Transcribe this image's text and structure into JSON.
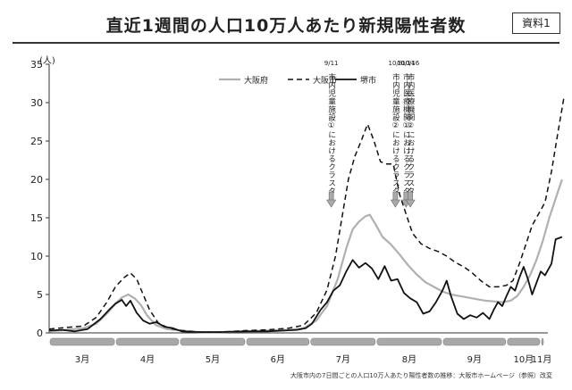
{
  "header": {
    "title": "直近1週間の人口10万人あたり新規陽性者数",
    "doc_label": "資料1"
  },
  "footnote": "大阪市内の7日間ごとの人口10万人あたり陽性者数の推移：大阪市ホームページ（参照）改変",
  "colors": {
    "osaka_pref": "#b0b0b0",
    "osaka_city": "#111111",
    "sakai_city": "#111111",
    "arrow": "#aaaaaa",
    "month_bar": "#a8a8a8"
  },
  "annotations": [
    {
      "date_label": "9/11",
      "text": "市内児童施設①におけるクラスター",
      "x": 132
    },
    {
      "date_label": "10/8",
      "text": "市内児童施設②におけるクラスター",
      "x": 162
    },
    {
      "date_label": "10/14",
      "text": "市内医療機関①におけるクラスター",
      "x": 167
    },
    {
      "date_label": "10/16",
      "text": "市内医療機関②におけるクラスター",
      "x": 169
    }
  ],
  "chart_data": {
    "type": "line",
    "title": "直近1週間の人口10万人あたり新規陽性者数",
    "xlabel": "",
    "ylabel": "(人)",
    "ylim": [
      0,
      35
    ],
    "yticks": [
      0,
      5,
      10,
      15,
      20,
      25,
      30,
      35
    ],
    "xlim": [
      0,
      230
    ],
    "months": [
      {
        "label": "3月",
        "start": 0,
        "end": 31
      },
      {
        "label": "4月",
        "start": 31,
        "end": 61
      },
      {
        "label": "5月",
        "start": 61,
        "end": 92
      },
      {
        "label": "6月",
        "start": 92,
        "end": 122
      },
      {
        "label": "7月",
        "start": 122,
        "end": 153
      },
      {
        "label": "8月",
        "start": 153,
        "end": 184
      },
      {
        "label": "9月",
        "start": 184,
        "end": 214
      },
      {
        "label": "10月",
        "start": 214,
        "end": 230
      },
      {
        "label": "11月",
        "start": 230,
        "end": 246
      }
    ],
    "grid": false,
    "legend_position": "top-center",
    "series": [
      {
        "name": "大阪府",
        "style": "solid-gray",
        "points": [
          [
            0,
            0.2
          ],
          [
            8,
            0.4
          ],
          [
            16,
            0.6
          ],
          [
            22,
            1.2
          ],
          [
            27,
            2.5
          ],
          [
            31,
            3.8
          ],
          [
            34,
            4.6
          ],
          [
            37,
            5.0
          ],
          [
            40,
            4.5
          ],
          [
            43,
            3.6
          ],
          [
            46,
            2.2
          ],
          [
            50,
            1.0
          ],
          [
            55,
            0.5
          ],
          [
            62,
            0.3
          ],
          [
            70,
            0.1
          ],
          [
            80,
            0.1
          ],
          [
            92,
            0.2
          ],
          [
            102,
            0.3
          ],
          [
            112,
            0.4
          ],
          [
            119,
            0.6
          ],
          [
            125,
            1.6
          ],
          [
            130,
            3.5
          ],
          [
            135,
            7.0
          ],
          [
            139,
            11.0
          ],
          [
            142,
            13.5
          ],
          [
            145,
            14.5
          ],
          [
            148,
            15.2
          ],
          [
            150,
            15.4
          ],
          [
            153,
            14.0
          ],
          [
            156,
            12.5
          ],
          [
            160,
            11.5
          ],
          [
            164,
            10.2
          ],
          [
            168,
            8.8
          ],
          [
            172,
            7.6
          ],
          [
            176,
            6.6
          ],
          [
            180,
            6.0
          ],
          [
            184,
            5.4
          ],
          [
            188,
            5.0
          ],
          [
            192,
            4.8
          ],
          [
            196,
            4.6
          ],
          [
            200,
            4.4
          ],
          [
            204,
            4.2
          ],
          [
            208,
            4.1
          ],
          [
            212,
            4.0
          ],
          [
            216,
            4.2
          ],
          [
            219,
            4.8
          ],
          [
            222,
            6.0
          ],
          [
            225,
            7.5
          ],
          [
            228,
            9.5
          ],
          [
            231,
            12.0
          ],
          [
            234,
            15.0
          ],
          [
            237,
            17.5
          ],
          [
            240,
            20.0
          ]
        ]
      },
      {
        "name": "大阪市",
        "style": "dashed",
        "points": [
          [
            0,
            0.5
          ],
          [
            8,
            0.7
          ],
          [
            16,
            0.9
          ],
          [
            22,
            2.0
          ],
          [
            27,
            4.0
          ],
          [
            31,
            6.0
          ],
          [
            35,
            7.2
          ],
          [
            38,
            7.8
          ],
          [
            41,
            7.0
          ],
          [
            44,
            5.0
          ],
          [
            47,
            3.0
          ],
          [
            51,
            1.3
          ],
          [
            56,
            0.6
          ],
          [
            62,
            0.3
          ],
          [
            70,
            0.1
          ],
          [
            80,
            0.1
          ],
          [
            92,
            0.3
          ],
          [
            102,
            0.4
          ],
          [
            112,
            0.6
          ],
          [
            119,
            1.0
          ],
          [
            125,
            2.6
          ],
          [
            130,
            5.6
          ],
          [
            134,
            10.0
          ],
          [
            137,
            15.0
          ],
          [
            140,
            20.0
          ],
          [
            143,
            23.0
          ],
          [
            146,
            25.0
          ],
          [
            149,
            27.2
          ],
          [
            152,
            25.0
          ],
          [
            155,
            22.3
          ],
          [
            158,
            22.0
          ],
          [
            161,
            22.0
          ],
          [
            164,
            18.0
          ],
          [
            167,
            15.5
          ],
          [
            170,
            13.0
          ],
          [
            174,
            11.6
          ],
          [
            178,
            11.0
          ],
          [
            182,
            10.6
          ],
          [
            186,
            10.0
          ],
          [
            190,
            9.2
          ],
          [
            194,
            8.6
          ],
          [
            198,
            7.8
          ],
          [
            202,
            6.8
          ],
          [
            206,
            6.0
          ],
          [
            210,
            6.0
          ],
          [
            214,
            6.2
          ],
          [
            217,
            6.8
          ],
          [
            220,
            9.0
          ],
          [
            223,
            11.5
          ],
          [
            226,
            14.0
          ],
          [
            229,
            15.5
          ],
          [
            232,
            17.0
          ],
          [
            235,
            21.0
          ],
          [
            238,
            26.0
          ],
          [
            241,
            30.9
          ]
        ]
      },
      {
        "name": "堺市",
        "style": "solid-black",
        "points": [
          [
            0,
            0.3
          ],
          [
            6,
            0.4
          ],
          [
            12,
            0.2
          ],
          [
            18,
            0.5
          ],
          [
            24,
            1.8
          ],
          [
            28,
            3.0
          ],
          [
            31,
            3.8
          ],
          [
            34,
            4.3
          ],
          [
            36,
            3.5
          ],
          [
            38,
            4.2
          ],
          [
            41,
            2.6
          ],
          [
            44,
            1.6
          ],
          [
            47,
            1.2
          ],
          [
            50,
            1.4
          ],
          [
            54,
            0.8
          ],
          [
            58,
            0.6
          ],
          [
            62,
            0.2
          ],
          [
            70,
            0.1
          ],
          [
            80,
            0.1
          ],
          [
            92,
            0.2
          ],
          [
            102,
            0.2
          ],
          [
            110,
            0.3
          ],
          [
            116,
            0.4
          ],
          [
            120,
            0.6
          ],
          [
            123,
            1.2
          ],
          [
            127,
            3.0
          ],
          [
            130,
            4.0
          ],
          [
            133,
            5.5
          ],
          [
            136,
            6.2
          ],
          [
            139,
            8.0
          ],
          [
            142,
            9.5
          ],
          [
            145,
            8.5
          ],
          [
            148,
            9.1
          ],
          [
            151,
            8.4
          ],
          [
            154,
            7.0
          ],
          [
            157,
            8.7
          ],
          [
            160,
            6.8
          ],
          [
            163,
            7.0
          ],
          [
            166,
            5.2
          ],
          [
            169,
            4.5
          ],
          [
            172,
            4.0
          ],
          [
            175,
            2.5
          ],
          [
            178,
            2.8
          ],
          [
            181,
            4.0
          ],
          [
            184,
            5.5
          ],
          [
            186,
            6.8
          ],
          [
            188,
            4.8
          ],
          [
            191,
            2.5
          ],
          [
            194,
            1.8
          ],
          [
            197,
            2.3
          ],
          [
            200,
            2.0
          ],
          [
            203,
            2.6
          ],
          [
            206,
            1.8
          ],
          [
            208,
            3.0
          ],
          [
            210,
            4.0
          ],
          [
            212,
            3.5
          ],
          [
            214,
            4.8
          ],
          [
            216,
            6.0
          ],
          [
            218,
            5.5
          ],
          [
            220,
            7.2
          ],
          [
            222,
            8.6
          ],
          [
            224,
            7.0
          ],
          [
            226,
            5.0
          ],
          [
            228,
            6.5
          ],
          [
            230,
            8.0
          ],
          [
            232,
            7.5
          ],
          [
            235,
            9.0
          ],
          [
            237,
            12.2
          ],
          [
            240,
            12.5
          ]
        ]
      }
    ]
  }
}
